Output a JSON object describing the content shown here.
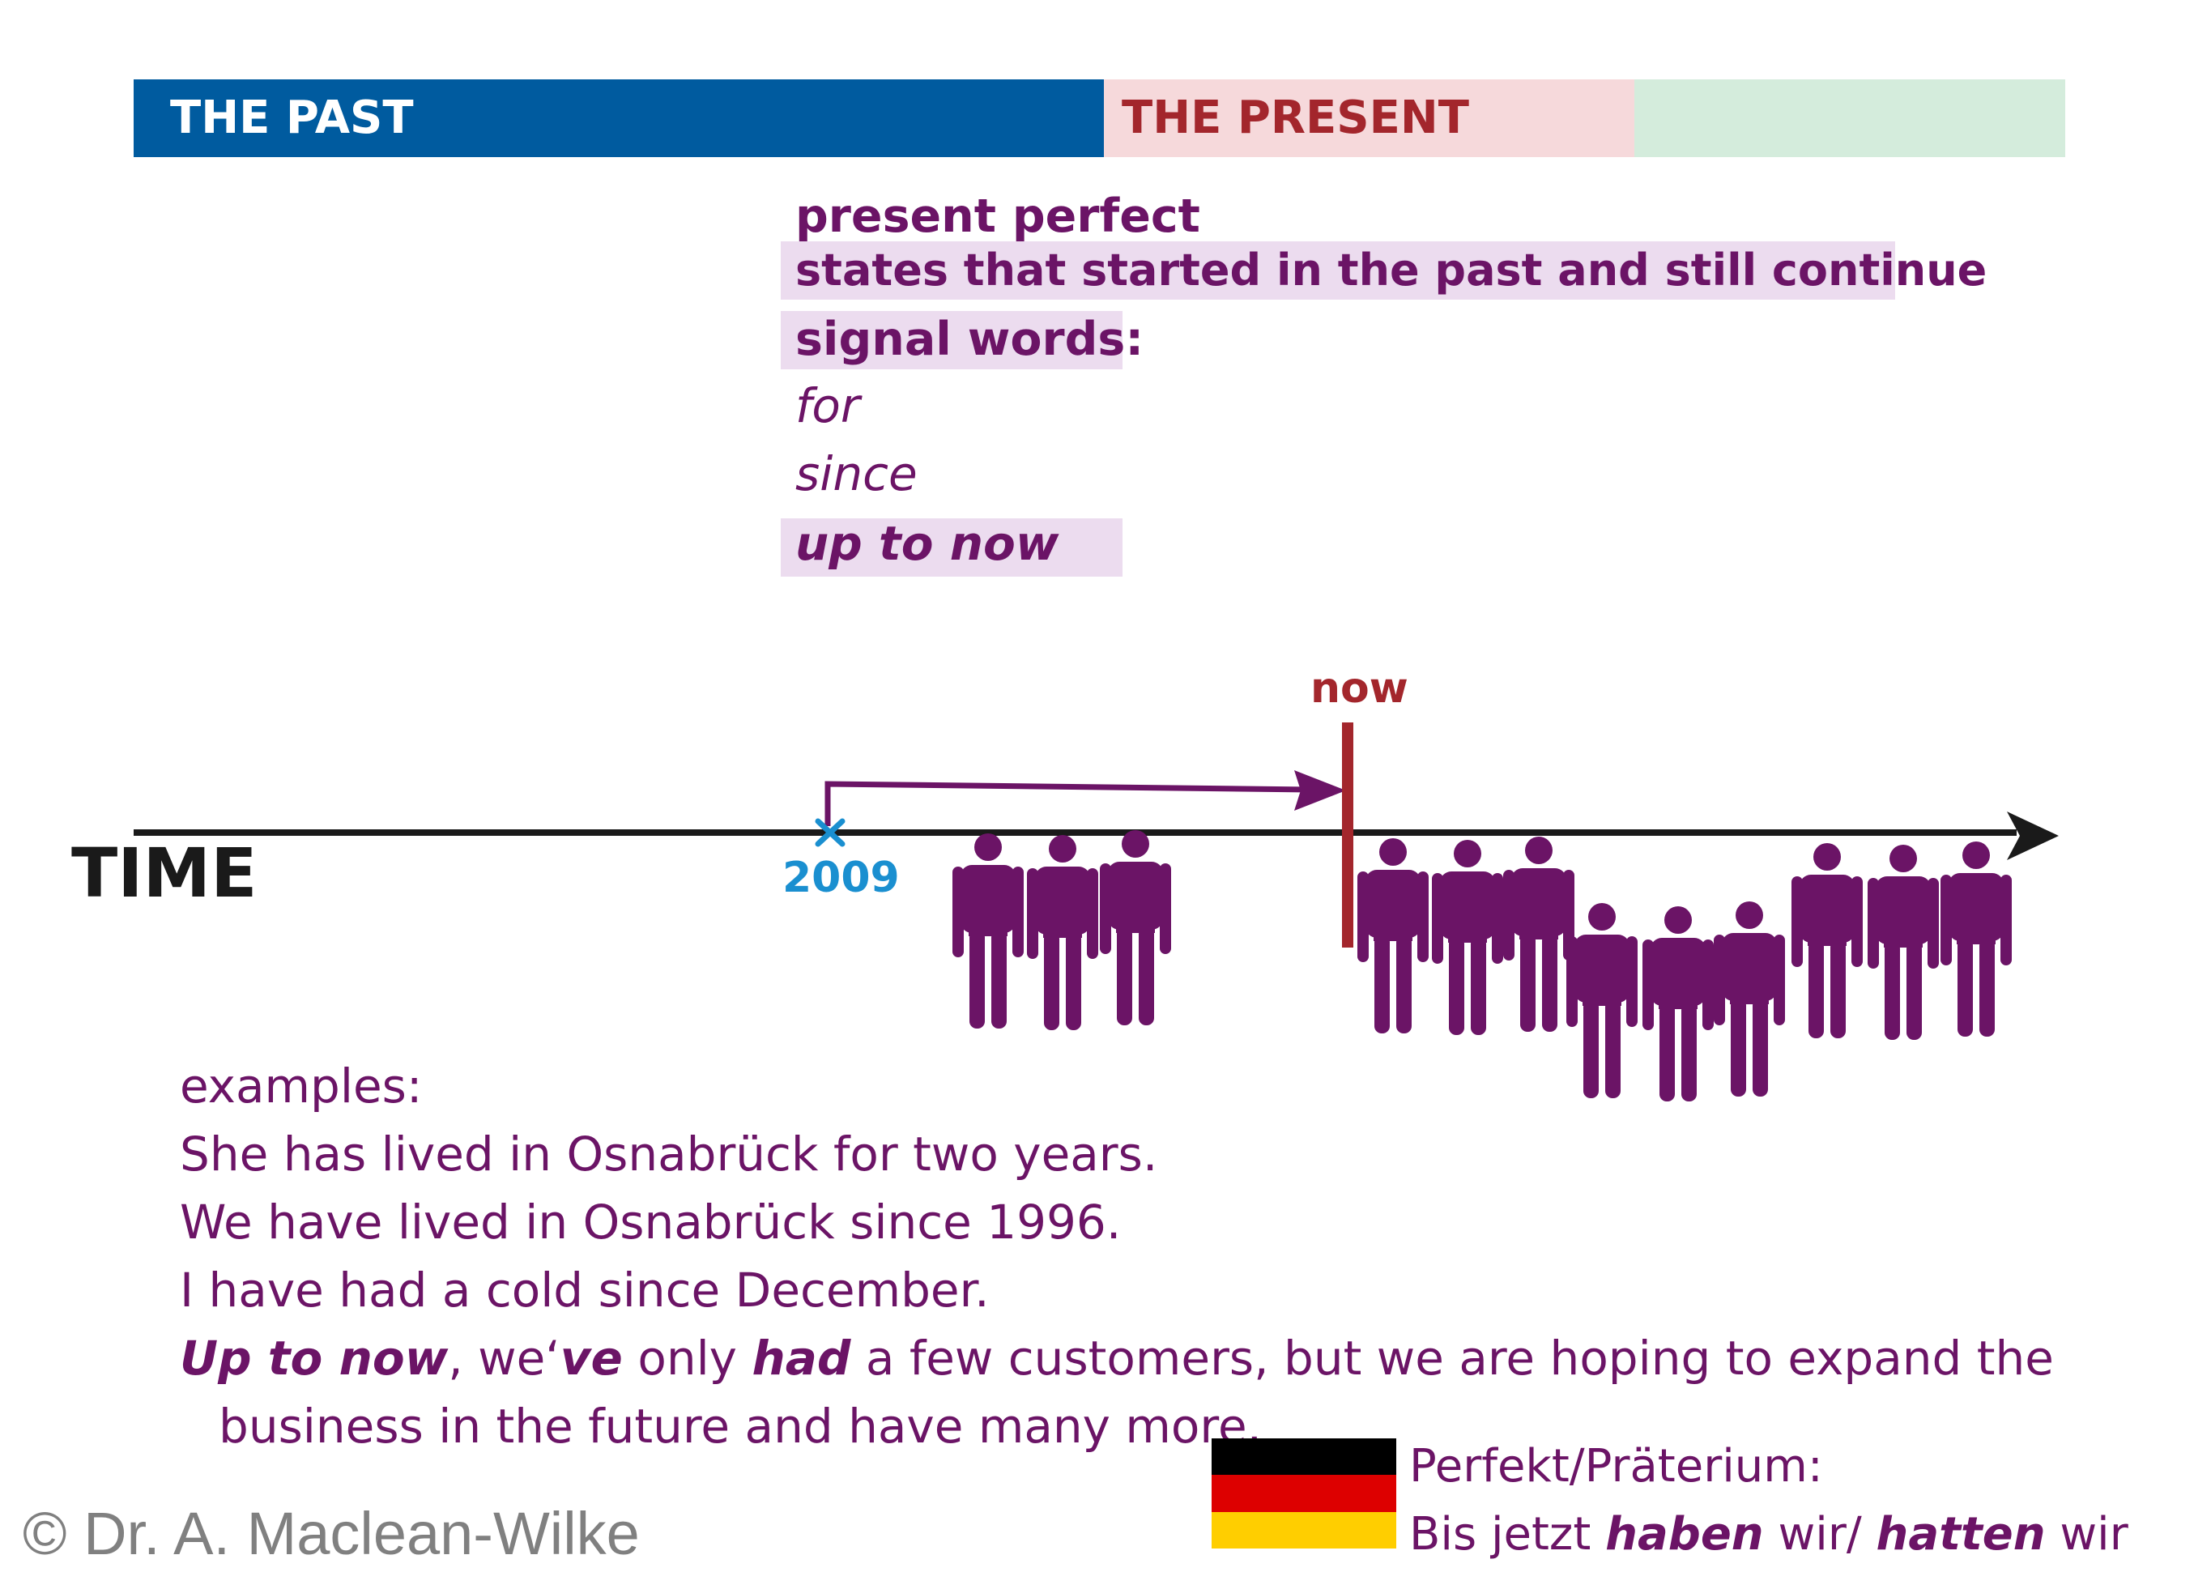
{
  "bands": {
    "past": "THE PAST",
    "present": "THE PRESENT",
    "future": ""
  },
  "tense": {
    "name": "present perfect",
    "usage": "states that started in the past and still continue",
    "signal_heading": "signal words:",
    "signal_words": [
      "for",
      "since",
      "up to now"
    ]
  },
  "timeline": {
    "axis_label": "TIME",
    "now_label": "now",
    "start_label": "2009"
  },
  "examples": {
    "heading": "examples:",
    "lines": [
      "She has lived in Osnabrück for two years.",
      "We have lived in Osnabrück since 1996.",
      "I have had a cold since December."
    ],
    "last": {
      "p1": "Up to now",
      "p2": ", we‘",
      "p3": "ve",
      "p4": " only ",
      "p5": "had",
      "p6": " a few customers, but we are hoping to expand the",
      "p7": "business in the future and have many more."
    }
  },
  "german": {
    "line1": "Perfekt/Präterium:",
    "l2a": "Bis jetzt ",
    "l2b": "haben",
    "l2c": " wir/ ",
    "l2d": "hatten",
    "l2e": " wir"
  },
  "copyright": "© Dr. A. Maclean-Wilke",
  "colors": {
    "past": "#005b9f",
    "present": "#f6d9db",
    "future": "#d4ecdc",
    "purple": "#6b1466",
    "now_red": "#a3262c",
    "start_blue": "#1a8fd0",
    "highlight": "#ecdcef"
  }
}
